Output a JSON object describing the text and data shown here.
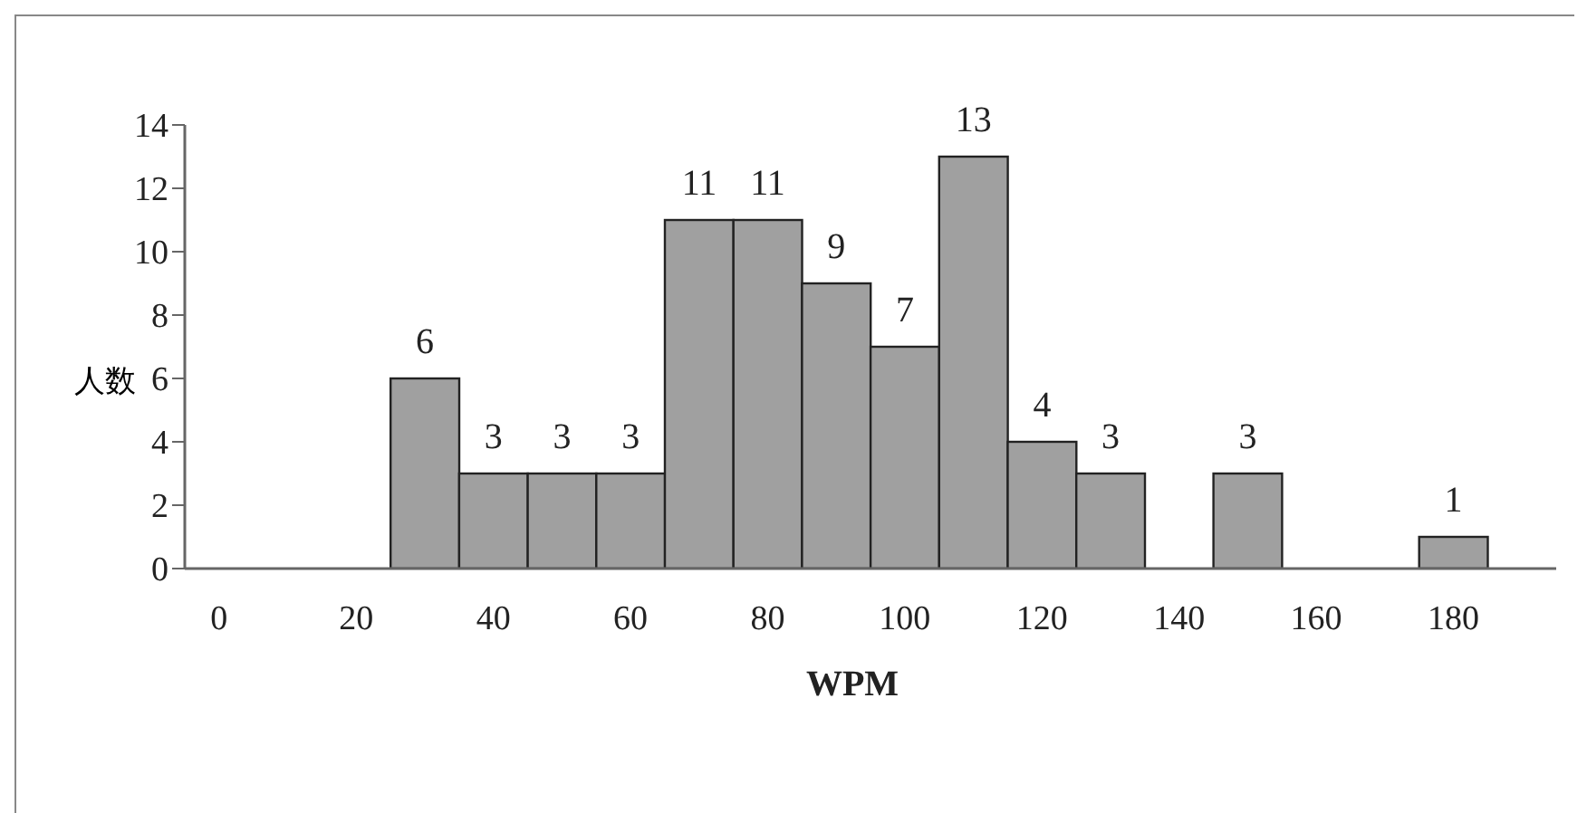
{
  "chart_data": {
    "type": "histogram",
    "xlabel": "WPM",
    "ylabel": "人数",
    "bins": [
      25,
      35,
      45,
      55,
      65,
      75,
      85,
      95,
      105,
      115,
      125,
      135,
      145,
      155,
      165,
      175,
      185
    ],
    "values": [
      6,
      3,
      3,
      3,
      11,
      11,
      9,
      7,
      13,
      4,
      3,
      0,
      3,
      0,
      0,
      1
    ],
    "value_labels": [
      "6",
      "3",
      "3",
      "3",
      "11",
      "11",
      "9",
      "7",
      "13",
      "4",
      "3",
      null,
      "3",
      null,
      null,
      "1"
    ],
    "color": "#a0a0a0",
    "xlim": [
      -5,
      195
    ],
    "xticks": [
      0,
      20,
      40,
      60,
      80,
      100,
      120,
      140,
      160,
      180
    ],
    "ylim": [
      0,
      14
    ],
    "yticks": [
      0,
      2,
      4,
      6,
      8,
      10,
      12,
      14
    ],
    "grid": false,
    "legend": false
  }
}
